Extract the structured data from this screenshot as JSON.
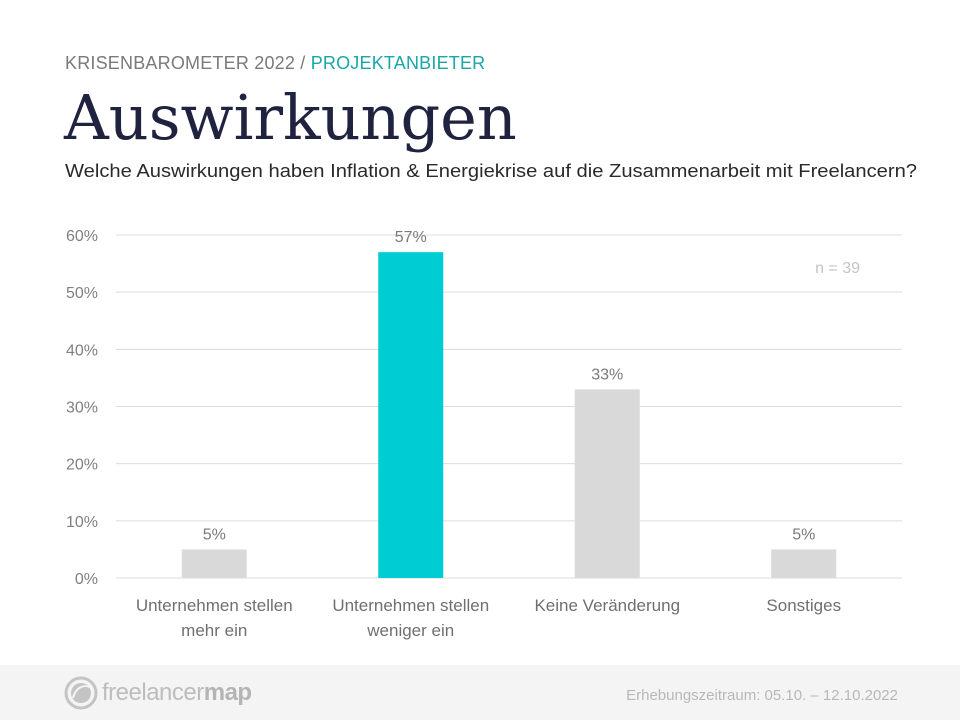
{
  "header": {
    "kicker_main": "KRISENBAROMETER 2022 / ",
    "kicker_accent": "PROJEKTANBIETER",
    "title": "Auswirkungen",
    "subtitle": "Welche Auswirkungen haben Inflation & Energiekrise auf die Zusammenarbeit mit Freelancern?"
  },
  "colors": {
    "accent": "#00cdd3",
    "bar_default": "#d9d9d9",
    "kicker_accent": "#1aa6a8",
    "title": "#1f2340"
  },
  "chart_data": {
    "type": "bar",
    "title": "Auswirkungen",
    "xlabel": "",
    "ylabel": "",
    "categories": [
      [
        "Unternehmen stellen",
        "mehr ein"
      ],
      [
        "Unternehmen stellen",
        "weniger ein"
      ],
      [
        "Keine Veränderung"
      ],
      [
        "Sonstiges"
      ]
    ],
    "values": [
      5,
      57,
      33,
      5
    ],
    "value_labels": [
      "5%",
      "57%",
      "33%",
      "5%"
    ],
    "highlight_index": 1,
    "ylim": [
      0,
      60
    ],
    "yticks": [
      0,
      10,
      20,
      30,
      40,
      50,
      60
    ],
    "ytick_labels": [
      "0%",
      "10%",
      "20%",
      "30%",
      "40%",
      "50%",
      "60%"
    ],
    "grid": true,
    "annotation": "n = 39",
    "annotation_placement": "top-right"
  },
  "footer": {
    "logo_light": "freelancer",
    "logo_bold": "map",
    "period": "Erhebungszeitraum:  05.10. – 12.10.2022"
  }
}
